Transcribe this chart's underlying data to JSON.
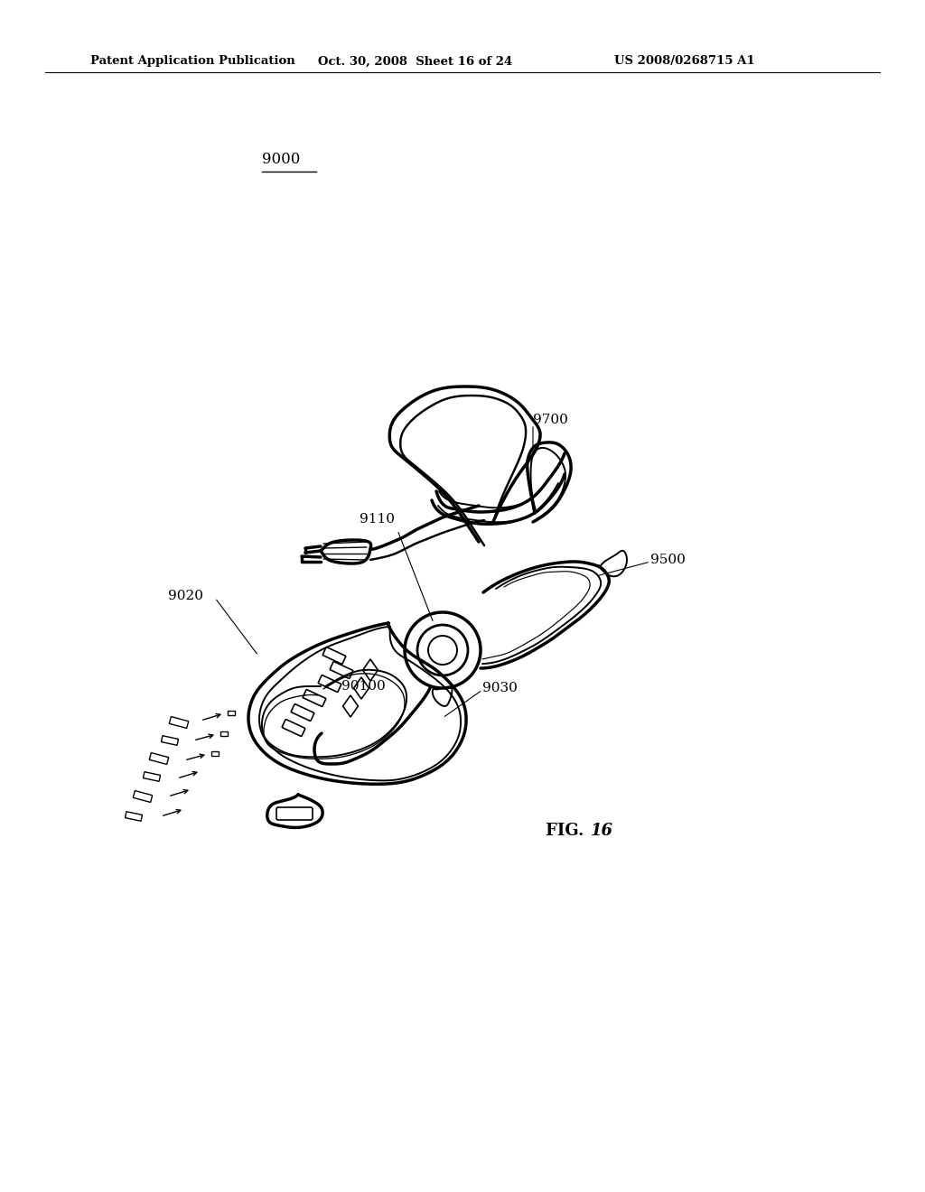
{
  "title_left": "Patent Application Publication",
  "title_center": "Oct. 30, 2008  Sheet 16 of 24",
  "title_right": "US 2008/0268715 A1",
  "fig_label": "FIG. 16",
  "background_color": "#ffffff",
  "line_color": "#000000",
  "text_color": "#000000"
}
